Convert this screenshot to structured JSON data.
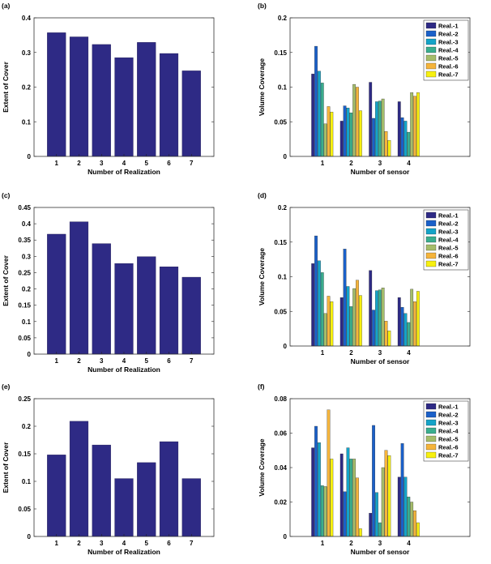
{
  "palette": {
    "bar_single": "#2e2a85",
    "series_colors": [
      "#2e2a85",
      "#1a60c9",
      "#14a3c8",
      "#3aae8f",
      "#a5bd6a",
      "#f5b43b",
      "#f7f00f"
    ]
  },
  "chart_data": [
    {
      "panel": "(a)",
      "type": "bar",
      "categories": [
        "1",
        "2",
        "3",
        "4",
        "5",
        "6",
        "7"
      ],
      "values": [
        0.357,
        0.345,
        0.323,
        0.285,
        0.329,
        0.297,
        0.247
      ],
      "xlabel": "Number of Realization",
      "ylabel": "Extent of Cover",
      "ylim": [
        0,
        0.4
      ],
      "yticks": [
        "0",
        "0.1",
        "0.2",
        "0.3",
        "0.4"
      ]
    },
    {
      "panel": "(b)",
      "type": "bar",
      "categories": [
        "1",
        "2",
        "3",
        "4"
      ],
      "xlabel": "Number of sensor",
      "ylabel": "Volume Coverage",
      "ylim": [
        0,
        0.2
      ],
      "yticks": [
        "0",
        "0.05",
        "0.1",
        "0.15",
        "0.2"
      ],
      "legend_position": "top-right",
      "series": [
        {
          "name": "Real.-1",
          "values": [
            0.119,
            0.051,
            0.107,
            0.079
          ]
        },
        {
          "name": "Real.-2",
          "values": [
            0.159,
            0.073,
            0.055,
            0.056
          ]
        },
        {
          "name": "Real.-3",
          "values": [
            0.123,
            0.07,
            0.079,
            0.051
          ]
        },
        {
          "name": "Real.-4",
          "values": [
            0.106,
            0.063,
            0.08,
            0.035
          ]
        },
        {
          "name": "Real.-5",
          "values": [
            0.047,
            0.104,
            0.083,
            0.092
          ]
        },
        {
          "name": "Real.-6",
          "values": [
            0.072,
            0.1,
            0.036,
            0.087
          ]
        },
        {
          "name": "Real.-7",
          "values": [
            0.064,
            0.066,
            0.023,
            0.092
          ]
        }
      ]
    },
    {
      "panel": "(c)",
      "type": "bar",
      "categories": [
        "1",
        "2",
        "3",
        "4",
        "5",
        "6",
        "7"
      ],
      "values": [
        0.368,
        0.406,
        0.339,
        0.278,
        0.299,
        0.268,
        0.236
      ],
      "xlabel": "Number of Realization",
      "ylabel": "Extent of Cover",
      "ylim": [
        0,
        0.45
      ],
      "yticks": [
        "0",
        "0.05",
        "0.1",
        "0.15",
        "0.2",
        "0.25",
        "0.3",
        "0.35",
        "0.4",
        "0.45"
      ]
    },
    {
      "panel": "(d)",
      "type": "bar",
      "categories": [
        "1",
        "2",
        "3",
        "4"
      ],
      "xlabel": "Number of sensor",
      "ylabel": "Volume Coverage",
      "ylim": [
        0,
        0.2
      ],
      "yticks": [
        "0",
        "0.05",
        "0.1",
        "0.15",
        "0.2"
      ],
      "legend_position": "top-right",
      "series": [
        {
          "name": "Real.-1",
          "values": [
            0.119,
            0.07,
            0.109,
            0.07
          ]
        },
        {
          "name": "Real.-2",
          "values": [
            0.159,
            0.14,
            0.052,
            0.056
          ]
        },
        {
          "name": "Real.-3",
          "values": [
            0.123,
            0.086,
            0.08,
            0.047
          ]
        },
        {
          "name": "Real.-4",
          "values": [
            0.106,
            0.057,
            0.081,
            0.034
          ]
        },
        {
          "name": "Real.-5",
          "values": [
            0.047,
            0.083,
            0.084,
            0.082
          ]
        },
        {
          "name": "Real.-6",
          "values": [
            0.072,
            0.095,
            0.036,
            0.064
          ]
        },
        {
          "name": "Real.-7",
          "values": [
            0.064,
            0.073,
            0.022,
            0.079
          ]
        }
      ]
    },
    {
      "panel": "(e)",
      "type": "bar",
      "categories": [
        "1",
        "2",
        "3",
        "4",
        "5",
        "6",
        "7"
      ],
      "values": [
        0.148,
        0.209,
        0.166,
        0.105,
        0.134,
        0.172,
        0.105
      ],
      "xlabel": "Number of Realization",
      "ylabel": "Extent of Cover",
      "ylim": [
        0,
        0.25
      ],
      "yticks": [
        "0",
        "0.05",
        "0.1",
        "0.15",
        "0.2",
        "0.25"
      ]
    },
    {
      "panel": "(f)",
      "type": "bar",
      "categories": [
        "1",
        "2",
        "3",
        "4"
      ],
      "xlabel": "Number of sensor",
      "ylabel": "Volume Coverage",
      "ylim": [
        0,
        0.08
      ],
      "yticks": [
        "0",
        "0.02",
        "0.04",
        "0.06",
        "0.08"
      ],
      "legend_position": "top-right",
      "series": [
        {
          "name": "Real.-1",
          "values": [
            0.0515,
            0.048,
            0.0135,
            0.0345
          ]
        },
        {
          "name": "Real.-2",
          "values": [
            0.064,
            0.026,
            0.0645,
            0.054
          ]
        },
        {
          "name": "Real.-3",
          "values": [
            0.0545,
            0.0515,
            0.0255,
            0.0345
          ]
        },
        {
          "name": "Real.-4",
          "values": [
            0.0295,
            0.045,
            0.008,
            0.023
          ]
        },
        {
          "name": "Real.-5",
          "values": [
            0.029,
            0.045,
            0.04,
            0.02
          ]
        },
        {
          "name": "Real.-6",
          "values": [
            0.0735,
            0.034,
            0.05,
            0.015
          ]
        },
        {
          "name": "Real.-7",
          "values": [
            0.045,
            0.0045,
            0.047,
            0.008
          ]
        }
      ]
    }
  ]
}
